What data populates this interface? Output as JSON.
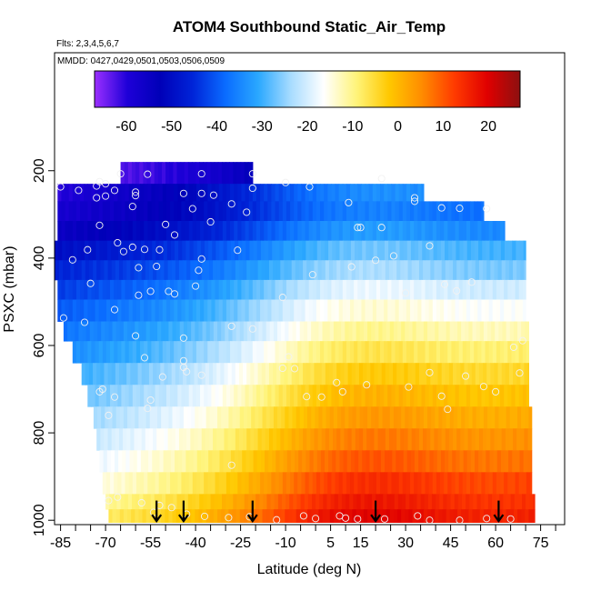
{
  "chart_data": {
    "type": "heatmap",
    "title": "ATOM4 Southbound Static_Air_Temp",
    "subtitle_flights": "Flts: 2,3,4,5,6,7",
    "subtitle_dates": "MMDD: 0427,0429,0501,0503,0506,0509",
    "xlabel": "Latitude (deg N)",
    "ylabel": "PSXC (mbar)",
    "x_ticks": [
      -85,
      -70,
      -55,
      -40,
      -25,
      -10,
      5,
      15,
      30,
      45,
      60,
      75
    ],
    "x_tick_labels": [
      "-85",
      "-70",
      "-55",
      "-40",
      "-25",
      "-10",
      "5",
      "15",
      "30",
      "45",
      "60",
      "75"
    ],
    "x_minor_ticks": [
      -80,
      -75,
      -65,
      -60,
      -50,
      -45,
      -35,
      -30,
      -20,
      -15,
      -5,
      0,
      10,
      20,
      25,
      35,
      40,
      50,
      55,
      65,
      70,
      80
    ],
    "xlim": [
      -87,
      83
    ],
    "y_ticks": [
      200,
      400,
      600,
      800,
      1000
    ],
    "y_tick_labels": [
      "200",
      "400",
      "600",
      "800",
      "1000"
    ],
    "ylim": [
      1010,
      -70
    ],
    "y_reversed": true,
    "grid": false,
    "colorbar": {
      "placement": "top-inside",
      "range": [
        -67,
        27
      ],
      "ticks": [
        -60,
        -50,
        -40,
        -30,
        -20,
        -10,
        0,
        10,
        20
      ],
      "tick_labels": [
        "-60",
        "-50",
        "-40",
        "-30",
        "-20",
        "-10",
        "0",
        "10",
        "20"
      ],
      "colors": [
        "#9b2fff",
        "#1e00d8",
        "#0000b8",
        "#0024d8",
        "#0a6cff",
        "#2aa8ff",
        "#a8dcff",
        "#ffffff",
        "#fff47a",
        "#ffc800",
        "#ff8c00",
        "#ff3a00",
        "#e00000",
        "#8c1010"
      ]
    },
    "profile_rows": [
      {
        "p_top": 180,
        "p_bottom": 230,
        "lat_min": -65,
        "lat_max": -21,
        "t_south": -63,
        "t_north": -58
      },
      {
        "p_top": 230,
        "p_bottom": 270,
        "lat_min": -86,
        "lat_max": 36,
        "t_south": -60,
        "t_north": -40
      },
      {
        "p_top": 270,
        "p_bottom": 315,
        "lat_min": -86,
        "lat_max": 56,
        "t_south": -58,
        "t_north": -40
      },
      {
        "p_top": 315,
        "p_bottom": 360,
        "lat_min": -86,
        "lat_max": 63,
        "t_south": -55,
        "t_north": -36
      },
      {
        "p_top": 360,
        "p_bottom": 405,
        "lat_min": -87,
        "lat_max": 70,
        "t_south": -50,
        "t_north": -30
      },
      {
        "p_top": 405,
        "p_bottom": 450,
        "lat_min": -88,
        "lat_max": 70,
        "t_south": -46,
        "t_north": -27
      },
      {
        "p_top": 450,
        "p_bottom": 495,
        "lat_min": -86,
        "lat_max": 70,
        "t_south": -43,
        "t_north": -21
      },
      {
        "p_top": 495,
        "p_bottom": 545,
        "lat_min": -86,
        "lat_max": 70,
        "t_south": -40,
        "t_north": -17
      },
      {
        "p_top": 545,
        "p_bottom": 590,
        "lat_min": -84,
        "lat_max": 71,
        "t_south": -37,
        "t_north": -13
      },
      {
        "p_top": 590,
        "p_bottom": 640,
        "lat_min": -81,
        "lat_max": 71,
        "t_south": -34,
        "t_north": -9
      },
      {
        "p_top": 640,
        "p_bottom": 690,
        "lat_min": -78,
        "lat_max": 71,
        "t_south": -30,
        "t_north": -5
      },
      {
        "p_top": 690,
        "p_bottom": 740,
        "lat_min": -76,
        "lat_max": 71,
        "t_south": -27,
        "t_north": -2
      },
      {
        "p_top": 740,
        "p_bottom": 790,
        "lat_min": -74,
        "lat_max": 72,
        "t_south": -24,
        "t_north": 1
      },
      {
        "p_top": 790,
        "p_bottom": 840,
        "lat_min": -73,
        "lat_max": 72,
        "t_south": -21,
        "t_north": 4
      },
      {
        "p_top": 840,
        "p_bottom": 890,
        "lat_min": -72,
        "lat_max": 72,
        "t_south": -18,
        "t_north": 7
      },
      {
        "p_top": 890,
        "p_bottom": 940,
        "lat_min": -71,
        "lat_max": 72,
        "t_south": -15,
        "t_north": 11
      },
      {
        "p_top": 940,
        "p_bottom": 975,
        "lat_min": -70,
        "lat_max": 73,
        "t_south": -11,
        "t_north": 13
      },
      {
        "p_top": 975,
        "p_bottom": 1005,
        "lat_min": -69,
        "lat_max": 73,
        "t_south": -8,
        "t_north": 15
      }
    ],
    "profile_shape": {
      "peak_lat": 10,
      "peak_boost": 14,
      "width_deg": 38
    },
    "observation_points": [
      [
        -65,
        207
      ],
      [
        -56,
        208
      ],
      [
        -38,
        207
      ],
      [
        -21,
        207
      ],
      [
        -85,
        237
      ],
      [
        -72,
        225
      ],
      [
        -73,
        235
      ],
      [
        -70,
        230
      ],
      [
        -79,
        245
      ],
      [
        -67,
        245
      ],
      [
        -73,
        262
      ],
      [
        -60,
        249
      ],
      [
        -60,
        257
      ],
      [
        -44,
        252
      ],
      [
        -38,
        252
      ],
      [
        -34,
        256
      ],
      [
        -28,
        276
      ],
      [
        -10,
        227
      ],
      [
        -2,
        237
      ],
      [
        -21,
        240
      ],
      [
        11,
        273
      ],
      [
        22,
        218
      ],
      [
        33,
        262
      ],
      [
        33,
        270
      ],
      [
        42,
        285
      ],
      [
        48,
        286
      ],
      [
        57,
        287
      ],
      [
        -70,
        258
      ],
      [
        -61,
        282
      ],
      [
        -41,
        287
      ],
      [
        14,
        330
      ],
      [
        15,
        330
      ],
      [
        22,
        330
      ],
      [
        -50,
        323
      ],
      [
        -35,
        317
      ],
      [
        -66,
        365
      ],
      [
        -47,
        347
      ],
      [
        -72,
        325
      ],
      [
        -76,
        381
      ],
      [
        -61,
        375
      ],
      [
        -64,
        385
      ],
      [
        -57,
        380
      ],
      [
        -52,
        381
      ],
      [
        -81,
        404
      ],
      [
        -38,
        402
      ],
      [
        -59,
        422
      ],
      [
        -75,
        458
      ],
      [
        -59,
        485
      ],
      [
        -26,
        382
      ],
      [
        -23,
        295
      ],
      [
        -39,
        428
      ],
      [
        -40,
        464
      ],
      [
        -53,
        419
      ],
      [
        -49,
        476
      ],
      [
        -11,
        490
      ],
      [
        -1,
        438
      ],
      [
        12,
        420
      ],
      [
        20,
        405
      ],
      [
        26,
        395
      ],
      [
        38,
        372
      ],
      [
        43,
        460
      ],
      [
        47,
        475
      ],
      [
        52,
        455
      ],
      [
        30,
        480
      ],
      [
        -55,
        476
      ],
      [
        -47,
        482
      ],
      [
        -67,
        518
      ],
      [
        -84,
        537
      ],
      [
        -77,
        547
      ],
      [
        -60,
        578
      ],
      [
        -44,
        583
      ],
      [
        -57,
        628
      ],
      [
        -44,
        635
      ],
      [
        -44,
        650
      ],
      [
        -55,
        725
      ],
      [
        -56,
        744
      ],
      [
        -72,
        706
      ],
      [
        -71,
        700
      ],
      [
        -67,
        718
      ],
      [
        -69,
        760
      ],
      [
        -43,
        660
      ],
      [
        -51,
        672
      ],
      [
        -38,
        668
      ],
      [
        -7,
        653
      ],
      [
        -9,
        626
      ],
      [
        -28,
        556
      ],
      [
        -21,
        562
      ],
      [
        -11,
        652
      ],
      [
        -3,
        717
      ],
      [
        2,
        718
      ],
      [
        7,
        685
      ],
      [
        9,
        706
      ],
      [
        17,
        690
      ],
      [
        31,
        695
      ],
      [
        38,
        662
      ],
      [
        42,
        716
      ],
      [
        44,
        746
      ],
      [
        56,
        694
      ],
      [
        50,
        670
      ],
      [
        69,
        589
      ],
      [
        66,
        604
      ],
      [
        68,
        663
      ],
      [
        60,
        706
      ],
      [
        -28,
        874
      ],
      [
        -66,
        947
      ],
      [
        -69,
        955
      ],
      [
        -58,
        960
      ],
      [
        -52,
        966
      ],
      [
        -48,
        971
      ],
      [
        -54,
        982
      ],
      [
        -43,
        986
      ],
      [
        -37,
        991
      ],
      [
        -29,
        994
      ],
      [
        -22,
        992
      ],
      [
        -4,
        990
      ],
      [
        0,
        996
      ],
      [
        10,
        995
      ],
      [
        14,
        997
      ],
      [
        23,
        997
      ],
      [
        34,
        990
      ],
      [
        48,
        1000
      ],
      [
        57,
        996
      ],
      [
        65,
        997
      ],
      [
        8,
        990
      ],
      [
        38,
        1000
      ],
      [
        -13,
        999
      ]
    ],
    "arrow_latitudes": [
      -53,
      -44,
      -21,
      20,
      61
    ],
    "arrow_from_pressure": 955,
    "arrow_to_pressure": 1002
  }
}
